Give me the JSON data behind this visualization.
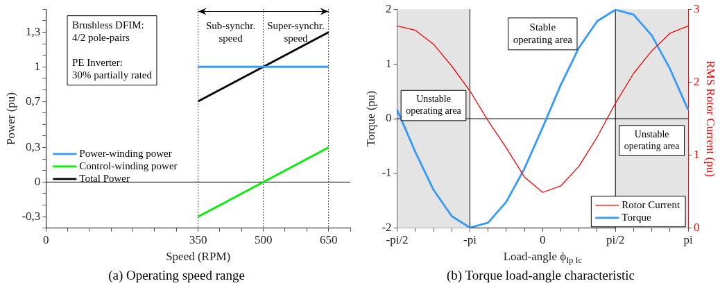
{
  "chart_data": [
    {
      "type": "line",
      "title": "(a) Operating speed range",
      "xlabel": "Speed (RPM)",
      "ylabel": "Power (pu)",
      "series": [
        {
          "name": "Power-winding power",
          "color": "#3399ff",
          "values": [
            1,
            1
          ]
        },
        {
          "name": "Control-winding power",
          "color": "#00ee00",
          "values": [
            -0.3,
            0.3
          ]
        },
        {
          "name": "Total Power",
          "color": "#000000",
          "values": [
            0.7,
            1.3
          ]
        }
      ],
      "x": [
        350,
        650
      ],
      "xlim": [
        0,
        700
      ],
      "xticks": [
        0,
        {
          "value": 50,
          "label": null
        },
        {
          "value": 100,
          "label": null
        },
        {
          "value": 150,
          "label": null
        },
        {
          "value": 200,
          "label": null
        },
        {
          "value": 250,
          "label": null
        },
        {
          "value": 300,
          "label": null
        },
        350,
        {
          "value": 400,
          "label": null
        },
        {
          "value": 450,
          "label": null
        },
        500,
        {
          "value": 550,
          "label": null
        },
        {
          "value": 600,
          "label": null
        },
        650,
        {
          "value": 700,
          "label": null
        }
      ],
      "ylim": [
        -0.4,
        1.5
      ],
      "yticks": [
        {
          "value": -0.4,
          "label": null
        },
        {
          "value": -0.3,
          "label": "-0,3"
        },
        {
          "value": -0.2,
          "label": null
        },
        {
          "value": -0.1,
          "label": null
        },
        0,
        {
          "value": 0.1,
          "label": null
        },
        {
          "value": 0.2,
          "label": null
        },
        {
          "value": 0.3,
          "label": "0,3"
        },
        {
          "value": 0.4,
          "label": null
        },
        {
          "value": 0.5,
          "label": null
        },
        {
          "value": 0.6,
          "label": null
        },
        {
          "value": 0.7,
          "label": "0,7"
        },
        {
          "value": 0.8,
          "label": null
        },
        {
          "value": 0.9,
          "label": null
        },
        1,
        {
          "value": 1.1,
          "label": null
        },
        {
          "value": 1.2,
          "label": null
        },
        {
          "value": 1.3,
          "label": "1,3"
        },
        {
          "value": 1.4,
          "label": null
        },
        {
          "value": 1.5,
          "label": null
        }
      ],
      "ref_lines": [
        {
          "axis": "y",
          "value": 0
        },
        {
          "axis": "x",
          "value": 350,
          "line_style": "dotted"
        },
        {
          "axis": "x",
          "value": 500,
          "line_style": "dotted"
        },
        {
          "axis": "x",
          "value": 650,
          "line_style": "dotted"
        }
      ],
      "annotations": [
        "Brushless DFIM:\n4/2 pole-pairs\n\nPE Inverter:\n30% partially rated",
        {
          "text": "Sub-synchr.\nspeed",
          "x": 350,
          "y": 1.48
        },
        {
          "text": "Super-synchr.\nspeed",
          "x": 650,
          "y": 1.48
        }
      ],
      "legend": "left",
      "grid": false
    },
    {
      "type": "line",
      "title": "(b) Torque load-angle characteristic",
      "xlabel": "Load-angle ϕ$_{Ip Ic}$",
      "ylabel": "Torque (pu)",
      "y2label": "RMS Rotor Current (pu)",
      "categories": [
        "-pi/2",
        null,
        null,
        null,
        "-pi",
        null,
        null,
        null,
        "0",
        null,
        null,
        null,
        "pi/2",
        null,
        null,
        null,
        "pi"
      ],
      "series": [
        {
          "name": "Rotor Current",
          "color": "#ff0000",
          "axis": "y2",
          "values": [
            2.77,
            2.71,
            2.52,
            2.22,
            1.88,
            1.47,
            1.1,
            0.7,
            0.49,
            0.58,
            0.85,
            1.25,
            1.71,
            2.12,
            2.43,
            2.67,
            2.77
          ]
        },
        {
          "name": "Torque",
          "color": "#3399ff",
          "values": [
            0.16,
            -0.61,
            -1.3,
            -1.78,
            -1.99,
            -1.9,
            -1.52,
            -0.91,
            -0.16,
            0.62,
            1.3,
            1.78,
            1.99,
            1.9,
            1.52,
            0.91,
            0.16
          ]
        }
      ],
      "ylim": [
        -2,
        2
      ],
      "yticks": [
        -2,
        -1,
        0,
        1,
        2
      ],
      "y2lim": [
        0,
        3
      ],
      "y2ticks": [
        0,
        1,
        2,
        3
      ],
      "ref_lines": [
        {
          "axis": "y",
          "value": 0
        },
        {
          "axis": "x",
          "value": "-pi"
        },
        {
          "axis": "x",
          "value": "pi/2"
        }
      ],
      "bands": [
        {
          "axis": "x",
          "from": "-pi/2",
          "to": "-pi",
          "label": "Unstable operating area",
          "color": "#e4e4e4"
        },
        {
          "axis": "x",
          "from": "pi/2",
          "to": "pi",
          "label": "Unstable operating area",
          "color": "#e4e4e4"
        }
      ],
      "annotations": [
        "Stable\noperating area"
      ],
      "legend": "bottom right",
      "grid": false
    }
  ]
}
